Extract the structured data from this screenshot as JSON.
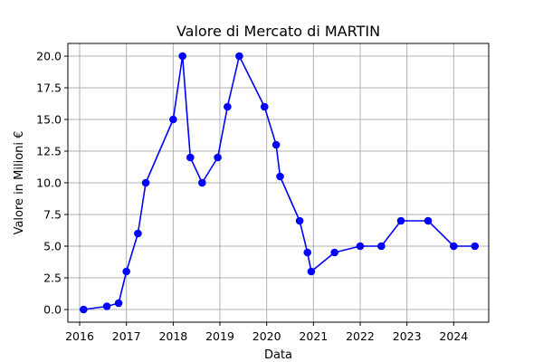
{
  "chart_data": {
    "type": "line",
    "title": "Valore di Mercato di MARTIN",
    "xlabel": "Data",
    "ylabel": "Valore in Milioni €",
    "grid": true,
    "xlim": [
      "2015-10-01",
      "2024-10-01"
    ],
    "ylim": [
      -1.0,
      21.0
    ],
    "x_ticks": [
      "2016",
      "2017",
      "2018",
      "2019",
      "2020",
      "2021",
      "2022",
      "2023",
      "2024"
    ],
    "y_ticks": [
      "0.0",
      "2.5",
      "5.0",
      "7.5",
      "10.0",
      "12.5",
      "15.0",
      "17.5",
      "20.0"
    ],
    "series": [
      {
        "color": "#0000ff",
        "marker": "circle",
        "x": [
          "2016-02-01",
          "2016-08-01",
          "2016-11-01",
          "2017-01-01",
          "2017-04-01",
          "2017-06-01",
          "2018-01-01",
          "2018-03-15",
          "2018-05-15",
          "2018-08-15",
          "2018-12-15",
          "2019-03-01",
          "2019-06-01",
          "2019-12-15",
          "2020-03-15",
          "2020-04-15",
          "2020-09-15",
          "2020-11-15",
          "2020-12-15",
          "2021-06-15",
          "2022-01-01",
          "2022-06-15",
          "2022-11-15",
          "2023-06-15",
          "2024-01-01",
          "2024-06-15"
        ],
        "y": [
          0.0,
          0.25,
          0.5,
          3.0,
          6.0,
          10.0,
          15.0,
          20.0,
          12.0,
          10.0,
          12.0,
          16.0,
          20.0,
          16.0,
          13.0,
          10.5,
          7.0,
          4.5,
          3.0,
          4.5,
          5.0,
          5.0,
          7.0,
          7.0,
          5.0,
          5.0
        ]
      }
    ]
  }
}
